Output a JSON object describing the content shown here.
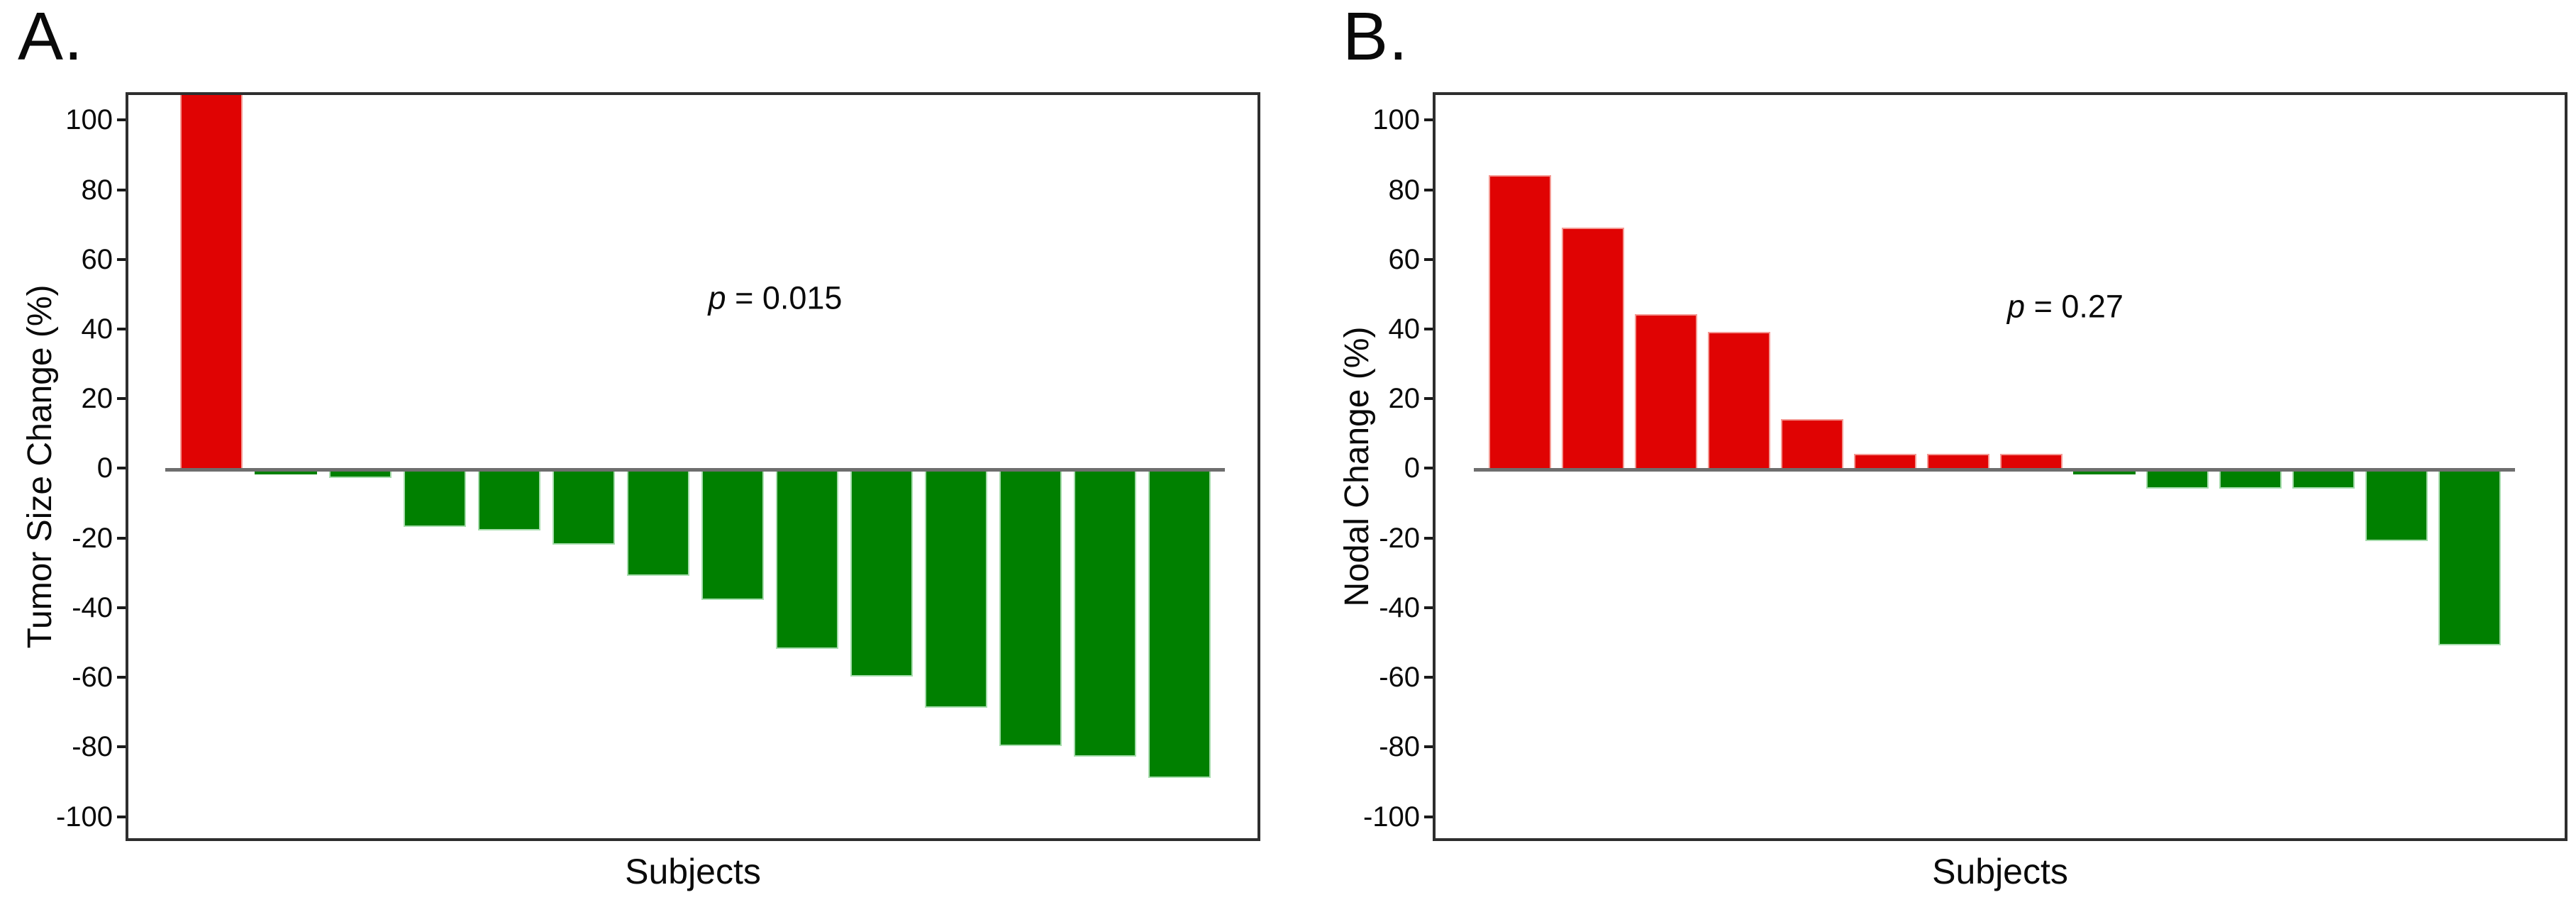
{
  "figure_background": "#ffffff",
  "chart_data": [
    {
      "type": "bar",
      "panel_label": "A.",
      "ylabel": "Tumor Size Change (%)",
      "xlabel": "Subjects",
      "annotation_italic": "p",
      "annotation_rest": " = 0.015",
      "values": [
        108,
        -1,
        -2,
        -16,
        -17,
        -21,
        -30,
        -37,
        -51,
        -59,
        -68,
        -79,
        -82,
        -88
      ],
      "first_bar_clipped_at_top": true,
      "yticks": [
        100,
        80,
        60,
        40,
        20,
        0,
        -20,
        -40,
        -60,
        -80,
        -100
      ],
      "ylim": [
        -107,
        108
      ],
      "grid": false,
      "legend": null,
      "colors": {
        "positive": "#e00303",
        "negative": "#008000",
        "positive_edge": "#f49a94",
        "negative_edge": "#a6dcac",
        "axis_box": "#2e2e2e",
        "zero_line": "#6e6e6e"
      }
    },
    {
      "type": "bar",
      "panel_label": "B.",
      "ylabel": "Nodal Change (%)",
      "xlabel": "Subjects",
      "annotation_italic": "p",
      "annotation_rest": " = 0.27",
      "values": [
        85,
        70,
        45,
        40,
        15,
        5,
        5,
        5,
        -1,
        -5,
        -5,
        -5,
        -20,
        -50
      ],
      "first_bar_clipped_at_top": false,
      "yticks": [
        100,
        80,
        60,
        40,
        20,
        0,
        -20,
        -40,
        -60,
        -80,
        -100
      ],
      "ylim": [
        -107,
        108
      ],
      "grid": false,
      "legend": null,
      "colors": {
        "positive": "#e00303",
        "negative": "#008000",
        "positive_edge": "#f49a94",
        "negative_edge": "#a6dcac",
        "axis_box": "#2e2e2e",
        "zero_line": "#6e6e6e"
      }
    }
  ]
}
